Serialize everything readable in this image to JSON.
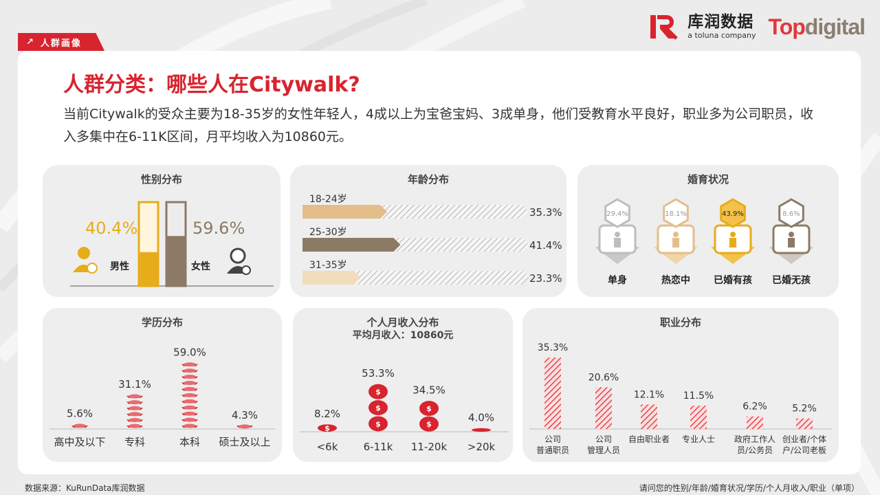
{
  "tag": {
    "label": "人群画像"
  },
  "logos": {
    "kurun_cn": "库润数据",
    "kurun_en": "a toluna company",
    "topdigital_1": "Top",
    "topdigital_2": "digital"
  },
  "title": "人群分类：哪些人在Citywalk?",
  "subtitle": "当前Citywalk的受众主要为18-35岁的女性年轻人，4成以上为宝爸宝妈、3成单身，他们受教育水平良好，职业多为公司职员，收入多集中在6-11K区间，月平均收入为10860元。",
  "footer": {
    "source": "数据来源：KuRunData库润数据",
    "question": "请问您的性别/年龄/婚育状况/学历/个人月收入/职业（单项）"
  },
  "colors": {
    "red": "#d8242f",
    "gold": "#e6ac1a",
    "brown": "#8c7a66",
    "tan": "#e3be8a",
    "lightTan": "#f1dcbc",
    "grey": "#bdbdbd"
  },
  "chart_data": [
    {
      "type": "bar",
      "title": "性别分布",
      "categories": [
        "男性",
        "女性"
      ],
      "values": [
        40.4,
        59.6
      ],
      "labels": [
        "40.4%",
        "59.6%"
      ],
      "ylim": [
        0,
        100
      ]
    },
    {
      "type": "bar",
      "title": "年龄分布",
      "categories": [
        "18-24岁",
        "25-30岁",
        "31-35岁"
      ],
      "values": [
        35.3,
        41.4,
        23.3
      ],
      "labels": [
        "35.3%",
        "41.4%",
        "23.3%"
      ]
    },
    {
      "type": "bar",
      "title": "婚育状况",
      "categories": [
        "单身",
        "热恋中",
        "已婚有孩",
        "已婚无孩"
      ],
      "values": [
        29.4,
        18.1,
        43.9,
        8.6
      ],
      "labels": [
        "29.4%",
        "18.1%",
        "43.9%",
        "8.6%"
      ]
    },
    {
      "type": "bar",
      "title": "学历分布",
      "categories": [
        "高中及以下",
        "专科",
        "本科",
        "硕士及以上"
      ],
      "values": [
        5.6,
        31.1,
        59.0,
        4.3
      ],
      "labels": [
        "5.6%",
        "31.1%",
        "59.0%",
        "4.3%"
      ]
    },
    {
      "type": "bar",
      "title": "个人月收入分布",
      "subtitle": "平均月收入：10860元",
      "categories": [
        "<6k",
        "6-11k",
        "11-20k",
        ">20k"
      ],
      "values": [
        8.2,
        53.3,
        34.5,
        4.0
      ],
      "labels": [
        "8.2%",
        "53.3%",
        "34.5%",
        "4.0%"
      ]
    },
    {
      "type": "bar",
      "title": "职业分布",
      "categories": [
        "公司\n普通职员",
        "公司\n管理人员",
        "自由职业者",
        "专业人士",
        "政府工作人\n员/公务员",
        "创业者/个体\n户/公司老板"
      ],
      "values": [
        35.3,
        20.6,
        12.1,
        11.5,
        6.2,
        5.2
      ],
      "labels": [
        "35.3%",
        "20.6%",
        "12.1%",
        "11.5%",
        "6.2%",
        "5.2%"
      ]
    }
  ]
}
